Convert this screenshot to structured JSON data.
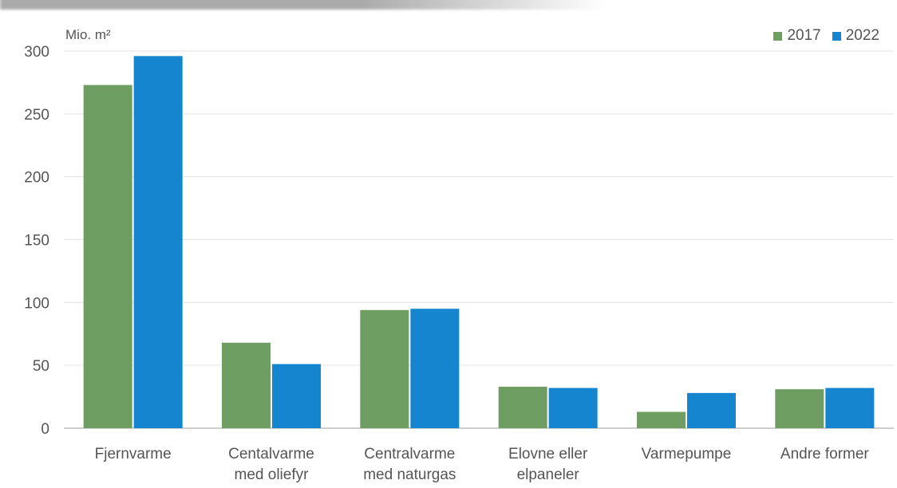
{
  "chart_data": {
    "type": "bar",
    "ylabel": "Mio. m²",
    "ylim": [
      0,
      300
    ],
    "yticks": [
      0,
      50,
      100,
      150,
      200,
      250,
      300
    ],
    "grid": true,
    "legend_position": "top-right",
    "categories": [
      [
        "Fjernvarme"
      ],
      [
        "Centalvarme",
        "med oliefyr"
      ],
      [
        "Centralvarme",
        "med naturgas"
      ],
      [
        "Elovne eller",
        "elpaneler"
      ],
      [
        "Varmepumpe"
      ],
      [
        "Andre former"
      ]
    ],
    "series": [
      {
        "name": "2017",
        "color": "#6e9e62",
        "values": [
          273,
          68,
          94,
          33,
          13,
          31
        ]
      },
      {
        "name": "2022",
        "color": "#1585cf",
        "values": [
          296,
          51,
          95,
          32,
          28,
          32
        ]
      }
    ]
  }
}
